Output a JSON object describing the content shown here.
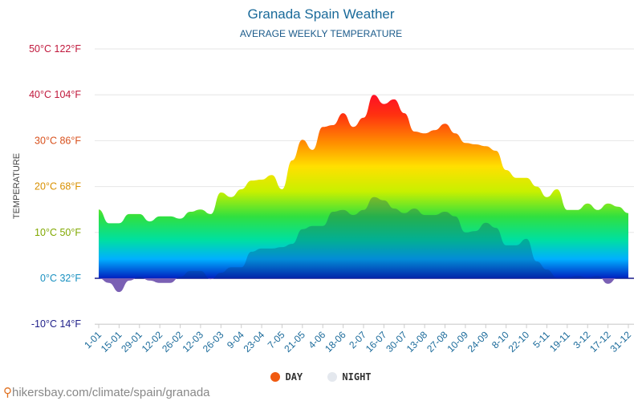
{
  "chart_data": {
    "type": "area",
    "title": "Granada Spain Weather",
    "subtitle": "AVERAGE WEEKLY TEMPERATURE",
    "ylabel": "TEMPERATURE",
    "xlabel": "",
    "ylim": [
      -10,
      50
    ],
    "grid": true,
    "legend_position": "bottom-center",
    "y_ticks": [
      {
        "value": 50,
        "label": "50°C 122°F",
        "color": "#c0183c"
      },
      {
        "value": 40,
        "label": "40°C 104°F",
        "color": "#c0183c"
      },
      {
        "value": 30,
        "label": "30°C 86°F",
        "color": "#d8501c"
      },
      {
        "value": 20,
        "label": "20°C 68°F",
        "color": "#d89000"
      },
      {
        "value": 10,
        "label": "10°C 50°F",
        "color": "#80a800"
      },
      {
        "value": 0,
        "label": "0°C 32°F",
        "color": "#1890c0"
      },
      {
        "value": -10,
        "label": "-10°C 14°F",
        "color": "#20208a"
      }
    ],
    "x_tick_labels": [
      "1-01",
      "15-01",
      "29-01",
      "12-02",
      "26-02",
      "12-03",
      "26-03",
      "9-04",
      "23-04",
      "7-05",
      "21-05",
      "4-06",
      "18-06",
      "2-07",
      "16-07",
      "30-07",
      "13-08",
      "27-08",
      "10-09",
      "24-09",
      "8-10",
      "22-10",
      "5-11",
      "19-11",
      "3-12",
      "17-12",
      "31-12"
    ],
    "series": [
      {
        "name": "DAY",
        "color": "#f05a10",
        "values": [
          15,
          12,
          12,
          14,
          14,
          12.4,
          13.5,
          13.5,
          13,
          14.5,
          15,
          14,
          18.7,
          17.7,
          19.4,
          21.3,
          21.5,
          22.5,
          19.4,
          25.7,
          30.2,
          28,
          33,
          33.4,
          36,
          33,
          35,
          40,
          38,
          39,
          36,
          32,
          31.6,
          32.3,
          33.7,
          31.6,
          29.5,
          29.2,
          28.8,
          27.8,
          23.6,
          21.9,
          21.9,
          20,
          17.7,
          19.4,
          14.9,
          14.9,
          16.3,
          14.9,
          16.3,
          15.6,
          14.2
        ]
      },
      {
        "name": "NIGHT",
        "color": "#e4e8ee",
        "values": [
          0,
          -1,
          -3,
          -0.5,
          0.3,
          -0.5,
          -1,
          -1,
          0.3,
          1.6,
          1.6,
          -0.2,
          1.2,
          2.4,
          2.4,
          5.8,
          6.5,
          6.5,
          6.8,
          7.5,
          10.7,
          11.4,
          11.4,
          14.5,
          14.9,
          13.8,
          14.9,
          17.7,
          17,
          15.2,
          14.2,
          15.2,
          13.8,
          13.8,
          14.5,
          13.5,
          10,
          10.3,
          12.1,
          11,
          7.2,
          7.2,
          8.6,
          3.7,
          1.9,
          0.2,
          0.2,
          0.5,
          0.2,
          0.5,
          -1.2,
          0.2,
          0.2
        ]
      }
    ]
  },
  "footer": {
    "text": "hikersbay.com/climate/spain/granada"
  }
}
